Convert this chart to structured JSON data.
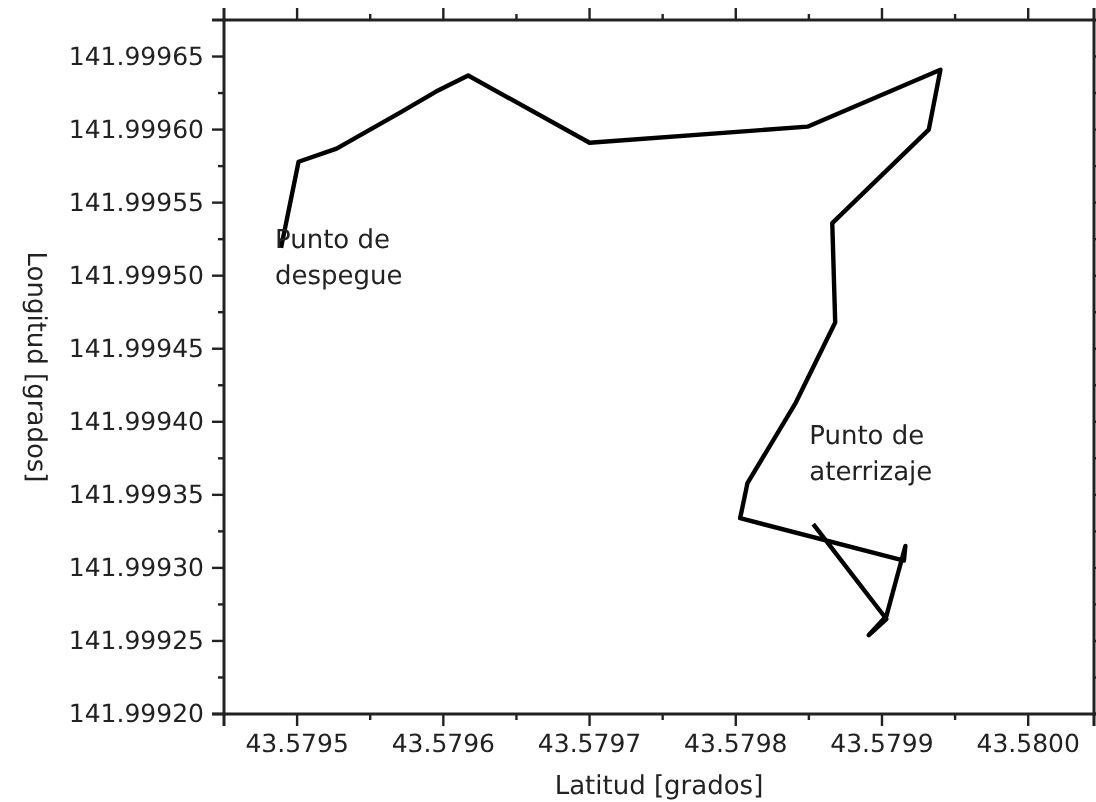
{
  "chart_data": {
    "type": "line",
    "xlabel": "Latitud [grados]",
    "ylabel": "Longitud [grados]",
    "xlim": [
      43.57945,
      43.580045
    ],
    "ylim": [
      141.9992,
      141.999675
    ],
    "xticks": [
      43.5795,
      {
        "value": 43.57955,
        "label": null
      },
      43.5796,
      {
        "value": 43.57965,
        "label": null
      },
      43.5797,
      {
        "value": 43.57975,
        "label": null
      },
      43.5798,
      {
        "value": 43.57985,
        "label": null
      },
      43.5799,
      {
        "value": 43.57995,
        "label": null
      },
      {
        "value": 43.58,
        "label": "43.5800"
      }
    ],
    "yticks": [
      {
        "value": 141.9992,
        "label": "141.99920"
      },
      {
        "value": 141.999225,
        "label": null
      },
      141.99925,
      {
        "value": 141.999275,
        "label": null
      },
      {
        "value": 141.9993,
        "label": "141.99930"
      },
      {
        "value": 141.999325,
        "label": null
      },
      141.99935,
      {
        "value": 141.999375,
        "label": null
      },
      {
        "value": 141.9994,
        "label": "141.99940"
      },
      {
        "value": 141.999425,
        "label": null
      },
      141.99945,
      {
        "value": 141.999475,
        "label": null
      },
      {
        "value": 141.9995,
        "label": "141.99950"
      },
      {
        "value": 141.999525,
        "label": null
      },
      141.99955,
      {
        "value": 141.999575,
        "label": null
      },
      {
        "value": 141.9996,
        "label": "141.99960"
      },
      {
        "value": 141.999625,
        "label": null
      },
      141.99965
    ],
    "grid": false,
    "marker": "none",
    "line_style": "solid",
    "series": [
      {
        "color": "#000000",
        "x": [
          43.579489,
          43.579501,
          43.579527,
          43.579571,
          43.579595,
          43.579617,
          43.5797,
          43.579849,
          43.57994,
          43.579932,
          43.579866,
          43.579868,
          43.579841,
          43.579808,
          43.579803,
          43.579915,
          43.579916,
          43.579903,
          43.579891,
          43.579903,
          43.579853
        ],
        "values": [
          141.999519,
          141.999578,
          141.999587,
          141.999612,
          141.999626,
          141.999637,
          141.999591,
          141.999602,
          141.999641,
          141.9996,
          141.999536,
          141.999468,
          141.999413,
          141.999358,
          141.999334,
          141.999305,
          141.999315,
          141.999267,
          141.999254,
          141.999265,
          141.99933
        ]
      }
    ],
    "annotations": [
      {
        "text": "Punto de\ndespegue",
        "x": 43.579489,
        "y": 141.999519
      },
      {
        "text": "Punto de\naterrizaje",
        "x": 43.579853,
        "y": 141.99933
      }
    ]
  }
}
